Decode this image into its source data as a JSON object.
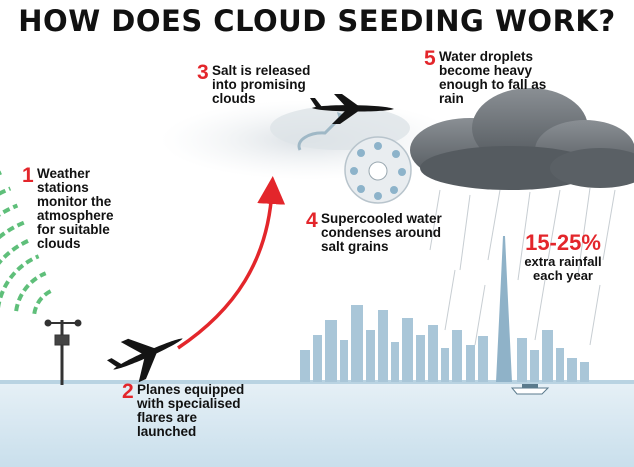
{
  "title": "HOW DOES CLOUD SEEDING WORK?",
  "steps": [
    {
      "number": "1",
      "text": "Weather stations monitor the atmosphere for suitable clouds"
    },
    {
      "number": "2",
      "text": "Planes equipped with specialised flares are launched"
    },
    {
      "number": "3",
      "text": "Salt is released into promising clouds"
    },
    {
      "number": "4",
      "text": "Supercooled water condenses around salt grains"
    },
    {
      "number": "5",
      "text": "Water droplets become heavy enough to fall as rain"
    }
  ],
  "stat": {
    "value": "15-25%",
    "label": "extra rainfall each year"
  },
  "colors": {
    "accent": "#e3262b",
    "signal": "#5fbf7a",
    "sea": "#d4e6f0",
    "rain_cloud": "#6e7378"
  }
}
